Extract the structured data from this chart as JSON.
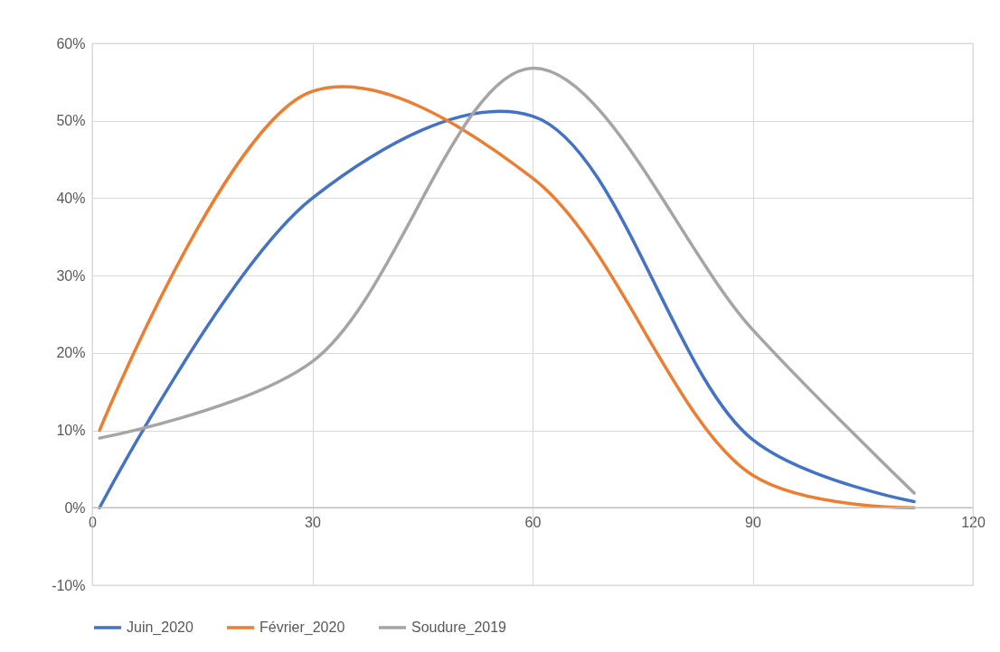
{
  "chart_data": {
    "type": "line",
    "x": [
      1,
      30,
      60,
      90,
      112
    ],
    "series": [
      {
        "name": "Juin_2020",
        "color": "#4472c4",
        "values": [
          0,
          40,
          50.6,
          8.8,
          0.8
        ]
      },
      {
        "name": "Février_2020",
        "color": "#ed7d31",
        "values": [
          10,
          53.8,
          42.6,
          4.2,
          0
        ]
      },
      {
        "name": "Soudure_2019",
        "color": "#a5a5a5",
        "values": [
          9,
          18.9,
          56.8,
          23,
          1.9
        ]
      }
    ],
    "xlim": [
      0,
      120
    ],
    "xticks": [
      0,
      30,
      60,
      90,
      120
    ],
    "ylim": [
      -10,
      60
    ],
    "yticks": [
      {
        "value": -10,
        "label": "-10%"
      },
      {
        "value": 0,
        "label": "0%"
      },
      {
        "value": 10,
        "label": "10%"
      },
      {
        "value": 20,
        "label": "20%"
      },
      {
        "value": 30,
        "label": "30%"
      },
      {
        "value": 40,
        "label": "40%"
      },
      {
        "value": 50,
        "label": "50%"
      },
      {
        "value": 60,
        "label": "60%"
      }
    ],
    "grid": true,
    "legend": "bottom",
    "marker": "none",
    "line_style": "solid"
  }
}
